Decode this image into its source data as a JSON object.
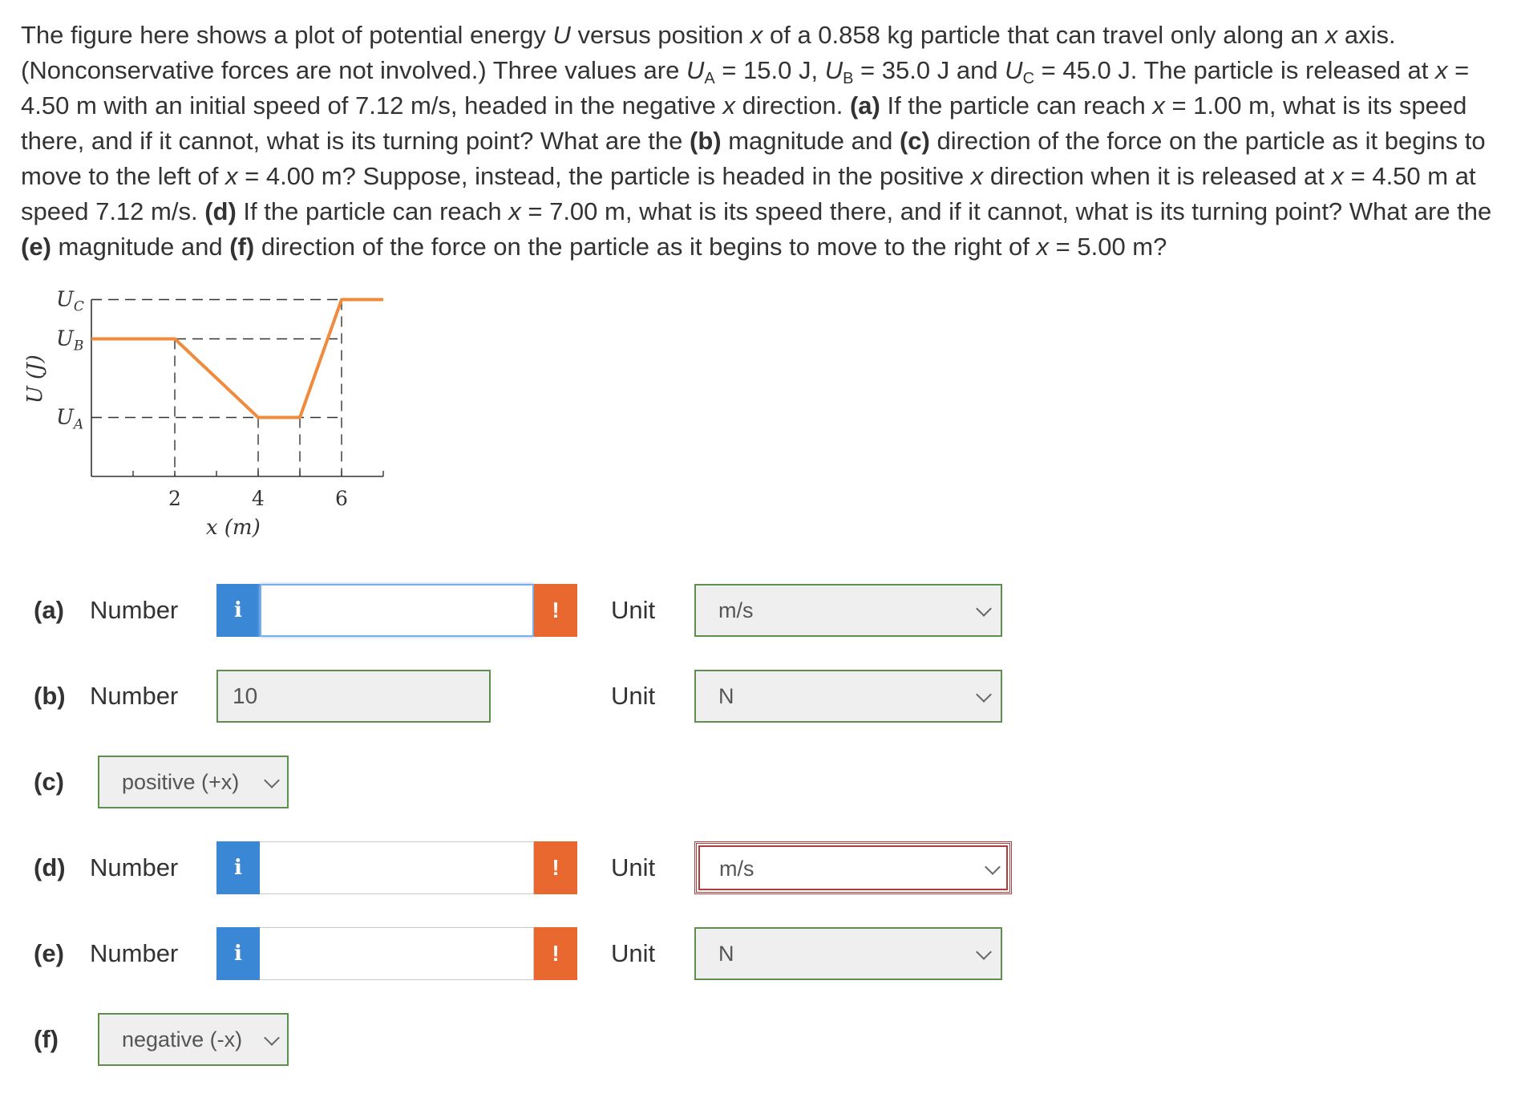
{
  "problem": {
    "t1": "The figure here shows a plot of potential energy ",
    "U": "U",
    "t2": " versus position ",
    "x": "x",
    "t3": " of a 0.858 kg particle that can travel only along an ",
    "t4": " axis. (Nonconservative forces are not involved.) Three values are ",
    "A": "A",
    "t5": " = 15.0 J, ",
    "B": "B",
    "t6": " = 35.0 J and ",
    "C": "C",
    "t7": " = 45.0 J. The particle is released at ",
    "t8": " = 4.50 m with an initial speed of 7.12 m/s, headed in the negative ",
    "t9": " direction. ",
    "pa": "(a)",
    "t10": " If the particle can reach ",
    "t11": " = 1.00 m, what is its speed there, and if it cannot, what is its turning point? What are the ",
    "pb": "(b)",
    "t12": " magnitude and ",
    "pc": "(c)",
    "t13": " direction of the force on the particle as it begins to move to the left of ",
    "t14": " = 4.00 m? Suppose, instead, the particle is headed in the positive ",
    "t15": " direction when it is released at ",
    "t16": " = 4.50 m at speed 7.12 m/s. ",
    "pd": "(d)",
    "t17": " If the particle can reach ",
    "t18": " = 7.00 m, what is its speed there, and if it cannot, what is its turning point? What are the ",
    "pe": "(e)",
    "t19": " magnitude and ",
    "pf": "(f)",
    "t20": " direction of the force on the particle as it begins to move to the right of ",
    "t21": " = 5.00 m?"
  },
  "chart_data": {
    "type": "line",
    "ylabel": "U (J)",
    "xlabel": "x (m)",
    "y_tick_labels": [
      {
        "sym": "U",
        "sub": "C",
        "value": 45
      },
      {
        "sym": "U",
        "sub": "B",
        "value": 35
      },
      {
        "sym": "U",
        "sub": "A",
        "value": 15
      }
    ],
    "x_tick_labels": [
      "2",
      "4",
      "6"
    ],
    "x_ticks": [
      1,
      2,
      3,
      4,
      5,
      6,
      7
    ],
    "xlim": [
      0,
      7
    ],
    "ylim": [
      0,
      45
    ],
    "series": [
      {
        "x": [
          0,
          2,
          4,
          5,
          6,
          7
        ],
        "y": [
          35,
          35,
          15,
          15,
          45,
          45
        ]
      }
    ],
    "line_color": "#f08a3c",
    "dashed_color": "#333333"
  },
  "rows": {
    "a": {
      "part": "(a)",
      "number_label": "Number",
      "info": "i",
      "value": "",
      "warn": "!",
      "unit_label": "Unit",
      "unit": "m/s"
    },
    "b": {
      "part": "(b)",
      "number_label": "Number",
      "value": "10",
      "unit_label": "Unit",
      "unit": "N"
    },
    "c": {
      "part": "(c)",
      "direction": "positive (+x)"
    },
    "d": {
      "part": "(d)",
      "number_label": "Number",
      "info": "i",
      "value": "",
      "warn": "!",
      "unit_label": "Unit",
      "unit": "m/s"
    },
    "e": {
      "part": "(e)",
      "number_label": "Number",
      "info": "i",
      "value": "",
      "warn": "!",
      "unit_label": "Unit",
      "unit": "N"
    },
    "f": {
      "part": "(f)",
      "direction": "negative (-x)"
    }
  },
  "colors": {
    "info": "#3a87d6",
    "warn": "#e8682f",
    "valid_border": "#5f8f4e",
    "error_border": "#b03c3c"
  }
}
